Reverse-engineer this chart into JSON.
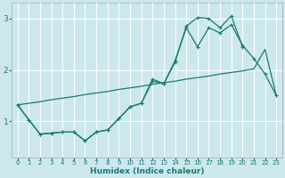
{
  "xlabel": "Humidex (Indice chaleur)",
  "bg_color": "#cce8ee",
  "line_color": "#1a7a6e",
  "grid_color": "#ffffff",
  "line1_x": [
    0,
    1,
    2,
    3,
    4,
    5,
    6,
    7,
    8,
    9,
    10,
    11,
    12,
    13,
    14,
    15,
    16,
    17,
    18,
    19,
    20,
    21,
    22,
    23
  ],
  "line1_y": [
    1.32,
    1.35,
    1.38,
    1.42,
    1.45,
    1.48,
    1.52,
    1.55,
    1.58,
    1.62,
    1.65,
    1.68,
    1.72,
    1.75,
    1.78,
    1.82,
    1.85,
    1.88,
    1.92,
    1.95,
    1.98,
    2.02,
    2.4,
    1.5
  ],
  "line2_x": [
    0,
    1,
    2,
    3,
    4,
    5,
    6,
    7,
    8,
    9,
    10,
    11,
    12,
    13,
    14,
    15,
    16,
    17,
    18,
    19,
    20,
    21,
    22,
    23
  ],
  "line2_y": [
    1.32,
    1.03,
    0.75,
    0.77,
    0.79,
    0.79,
    0.62,
    0.79,
    0.83,
    1.05,
    1.28,
    1.35,
    1.82,
    1.73,
    2.18,
    2.82,
    2.45,
    2.82,
    2.72,
    2.88,
    2.48,
    2.22,
    1.92,
    1.5
  ],
  "line3_x": [
    0,
    1,
    2,
    3,
    4,
    5,
    6,
    7,
    8,
    9,
    10,
    11,
    12,
    13,
    14,
    15,
    16,
    17,
    18,
    19,
    20
  ],
  "line3_y": [
    1.32,
    1.03,
    0.75,
    0.77,
    0.79,
    0.79,
    0.62,
    0.79,
    0.83,
    1.05,
    1.28,
    1.35,
    1.78,
    1.73,
    2.15,
    2.85,
    3.02,
    3.0,
    2.82,
    3.05,
    2.45
  ],
  "ylim": [
    0.3,
    3.3
  ],
  "xlim": [
    -0.5,
    23.5
  ],
  "yticks": [
    1,
    2,
    3
  ],
  "xticks": [
    0,
    1,
    2,
    3,
    4,
    5,
    6,
    7,
    8,
    9,
    10,
    11,
    12,
    13,
    14,
    15,
    16,
    17,
    18,
    19,
    20,
    21,
    22,
    23
  ]
}
